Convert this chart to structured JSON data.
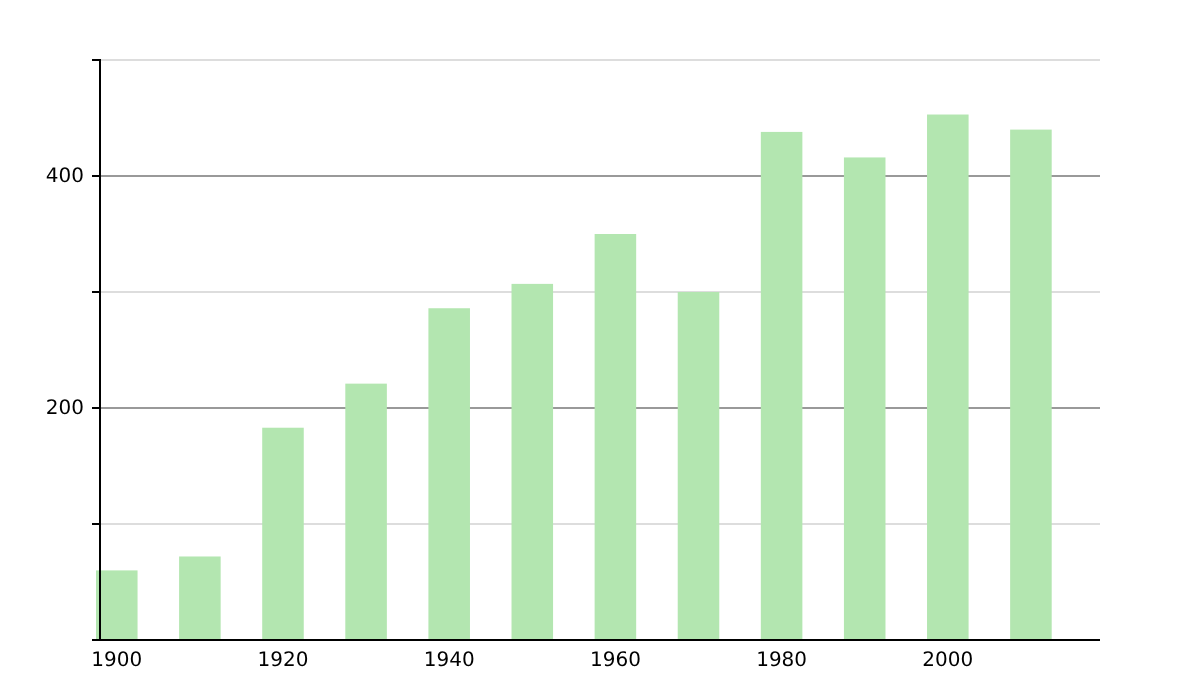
{
  "chart_data": {
    "type": "bar",
    "categories": [
      "1900",
      null,
      "1920",
      null,
      "1940",
      null,
      "1960",
      null,
      "1980",
      null,
      "2000",
      null
    ],
    "values": [
      60,
      72,
      183,
      221,
      286,
      307,
      350,
      300,
      438,
      416,
      453,
      440
    ],
    "color": "#b3e6b0",
    "ylim": [
      0,
      500
    ],
    "yticks": [
      {
        "value": 100,
        "label": null
      },
      200,
      {
        "value": 300,
        "label": null
      },
      400,
      {
        "value": 500,
        "label": null
      }
    ],
    "grid": "y"
  }
}
